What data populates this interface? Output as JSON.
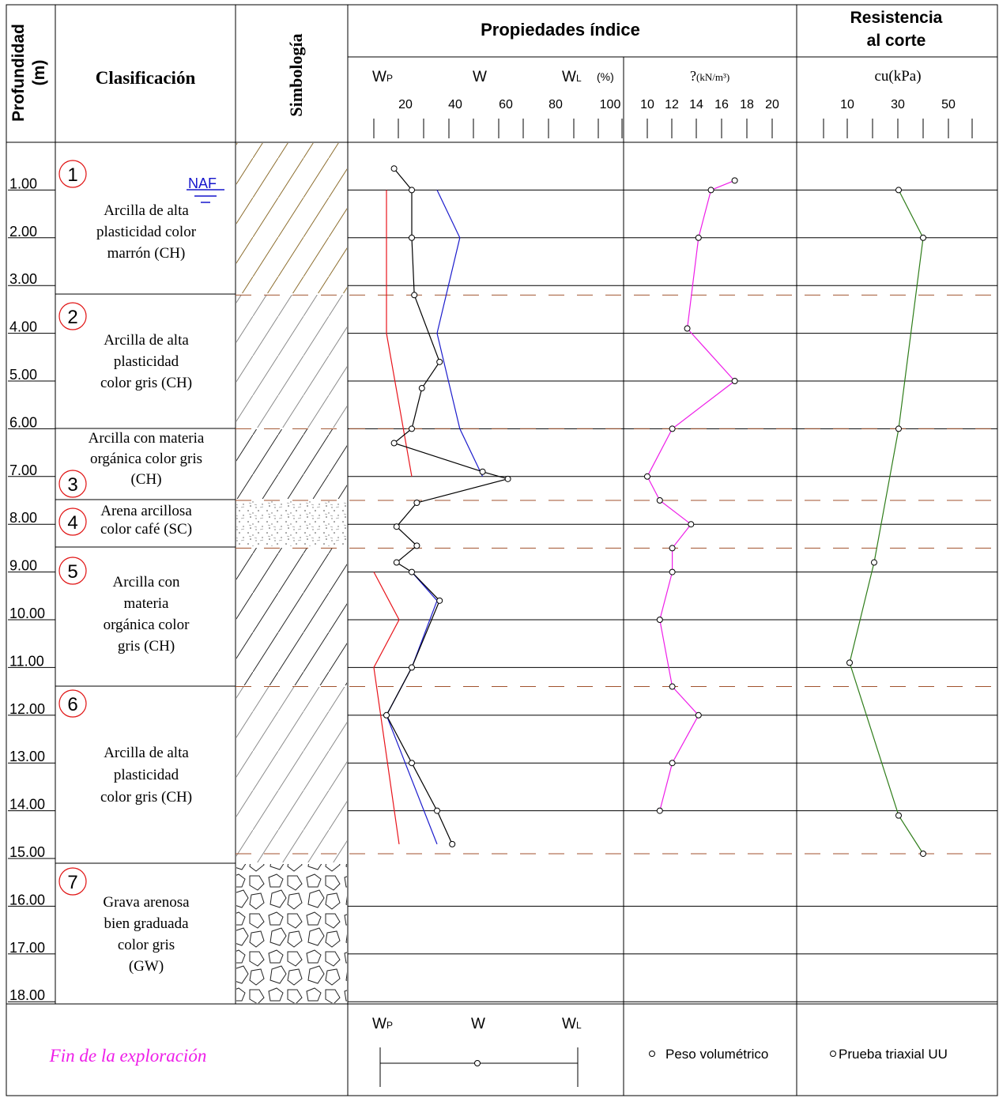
{
  "header": {
    "depth_label_1": "Profundidad",
    "depth_label_2": "(m)",
    "classification": "Clasificación",
    "symbology": "Simbología",
    "index_properties": "Propiedades índice",
    "shear_1": "Resistencia",
    "shear_2": "al corte",
    "wp": "WP",
    "w": "W",
    "wl": "WL",
    "percent": "(%)",
    "gamma": "?",
    "gamma_unit": "(kN/m³)",
    "cu": "cu(kPa)"
  },
  "moisture_ticks": [
    "20",
    "40",
    "60",
    "80",
    "100"
  ],
  "gamma_ticks": [
    "10",
    "12",
    "14",
    "16",
    "18",
    "20"
  ],
  "cu_ticks": [
    "10",
    "30",
    "50"
  ],
  "depth_labels": [
    "1.00",
    "2.00",
    "3.00",
    "4.00",
    "5.00",
    "6.00",
    "7.00",
    "8.00",
    "9.00",
    "10.00",
    "11.00",
    "12.00",
    "13.00",
    "14.00",
    "15.00",
    "16.00",
    "17.00",
    "18.00"
  ],
  "strata": [
    {
      "number": "1",
      "lines": [
        "Arcilla de alta",
        "plasticidad  color",
        "marrón (CH)"
      ],
      "pattern": "diagonal-brown"
    },
    {
      "number": "2",
      "lines": [
        "Arcilla de alta",
        "plasticidad",
        "color gris (CH)"
      ],
      "pattern": "diagonal-gray"
    },
    {
      "number": "3",
      "lines": [
        "Arcilla con materia",
        "orgánica color gris",
        "(CH)"
      ],
      "pattern": "diagonal-black"
    },
    {
      "number": "4",
      "lines": [
        "Arena arcillosa",
        "color café (SC)"
      ],
      "pattern": "sand"
    },
    {
      "number": "5",
      "lines": [
        "Arcilla con",
        "materia",
        "orgánica color",
        "gris (CH)"
      ],
      "pattern": "diagonal-black"
    },
    {
      "number": "6",
      "lines": [
        "Arcilla de alta",
        "plasticidad",
        "color gris (CH)"
      ],
      "pattern": "diagonal-gray"
    },
    {
      "number": "7",
      "lines": [
        "Grava arenosa",
        "bien graduada",
        "color gris",
        "(GW)"
      ],
      "pattern": "gravel"
    }
  ],
  "naf_label": "NAF",
  "footer": {
    "end_text": "Fin de la exploración",
    "legend_wp": "WP",
    "legend_w": "W",
    "legend_wl": "WL",
    "legend_gamma": "Peso volumétrico",
    "legend_cu": "Prueba triaxial UU"
  },
  "colors": {
    "wp": "#e8141b",
    "wl": "#1c1ccc",
    "w": "#000000",
    "gamma": "#ee1ee8",
    "cu": "#2f7d1a",
    "boundary": "#a0522d",
    "naf": "#1515cc",
    "end_text": "#ee1ee8",
    "circle_num": "#e01010"
  },
  "chart_data": {
    "type": "line",
    "strata_boundaries_m": [
      3.2,
      6.0,
      7.5,
      8.5,
      11.4,
      14.9
    ],
    "water_table_m": 0.9,
    "moisture": {
      "xlim": [
        0,
        100
      ],
      "w": [
        [
          8,
          0.55
        ],
        [
          15,
          1.0
        ],
        [
          15,
          2.0
        ],
        [
          16,
          3.2
        ],
        [
          26,
          4.6
        ],
        [
          19,
          5.15
        ],
        [
          15,
          6.0
        ],
        [
          8,
          6.3
        ],
        [
          43,
          6.9
        ],
        [
          53,
          7.05
        ],
        [
          17,
          7.55
        ],
        [
          9,
          8.05
        ],
        [
          17,
          8.45
        ],
        [
          9,
          8.8
        ],
        [
          15,
          9.0
        ],
        [
          26,
          9.6
        ],
        [
          15,
          11.0
        ],
        [
          5,
          12.0
        ],
        [
          15,
          13.0
        ],
        [
          25,
          14.0
        ],
        [
          31,
          14.7
        ]
      ],
      "wp": [
        [
          5,
          1.0
        ],
        [
          5,
          4.0
        ],
        [
          15,
          7.0
        ],
        [
          0,
          9.0
        ],
        [
          10,
          10.0
        ],
        [
          0,
          11.0
        ],
        [
          10,
          14.7
        ]
      ],
      "wl": [
        [
          25,
          1.0
        ],
        [
          34,
          2.0
        ],
        [
          25,
          4.0
        ],
        [
          34,
          6.0
        ],
        [
          43,
          7.0
        ],
        [
          15,
          9.0
        ],
        [
          25,
          9.6
        ],
        [
          15,
          11.0
        ],
        [
          5,
          12.0
        ],
        [
          25,
          14.7
        ]
      ]
    },
    "unit_weight": {
      "xlim": [
        10,
        20
      ],
      "points": [
        [
          17,
          0.8
        ],
        [
          15.1,
          1.0
        ],
        [
          14.1,
          2.0
        ],
        [
          13.2,
          3.9
        ],
        [
          17,
          5.0
        ],
        [
          12,
          6.0
        ],
        [
          10,
          7.0
        ],
        [
          11,
          7.5
        ],
        [
          13.5,
          8.0
        ],
        [
          12,
          8.5
        ],
        [
          12,
          9.0
        ],
        [
          11,
          10.0
        ],
        [
          12,
          11.4
        ],
        [
          14.1,
          12.0
        ],
        [
          12,
          13.0
        ],
        [
          11,
          14.0
        ]
      ]
    },
    "cu": {
      "xlim": [
        10,
        50
      ],
      "points": [
        [
          30,
          1.0
        ],
        [
          40,
          2.0
        ],
        [
          30,
          6.0
        ],
        [
          20,
          8.8
        ],
        [
          10,
          10.9
        ],
        [
          30,
          14.1
        ],
        [
          40,
          14.9
        ]
      ]
    }
  }
}
